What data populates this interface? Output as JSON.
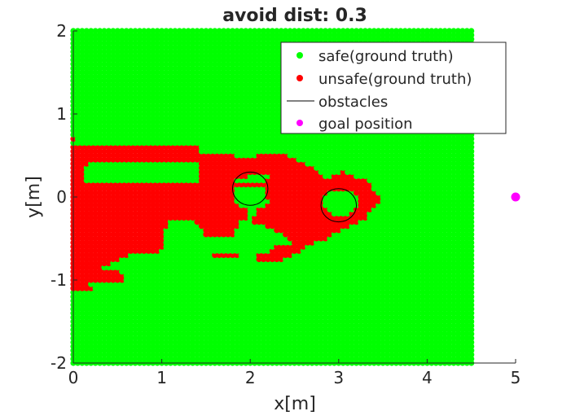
{
  "chart_data": {
    "type": "scatter",
    "title": "avoid dist: 0.3",
    "xlabel": "x[m]",
    "ylabel": "y[m]",
    "xlim": [
      0,
      5
    ],
    "ylim": [
      -2,
      2
    ],
    "xticks": [
      "0",
      "1",
      "2",
      "3",
      "4",
      "5"
    ],
    "yticks": [
      "-2",
      "-1",
      "0",
      "1",
      "2"
    ],
    "grid": false,
    "legend_position": "top-right",
    "grid_points": {
      "x_min": 0,
      "x_max": 4.5,
      "y_min": -2,
      "y_max": 2,
      "step": 0.05
    },
    "series": [
      {
        "name": "safe(ground truth)",
        "color": "#00ff00",
        "marker": "dot",
        "description_rule": "all grid points not listed as unsafe"
      },
      {
        "name": "unsafe(ground truth)",
        "color": "#ff0000",
        "marker": "dot",
        "rows": [
          {
            "y": 0.7,
            "x": [
              [
                0,
                0
              ]
            ]
          },
          {
            "y": 0.6,
            "x": [
              [
                0,
                1.4
              ]
            ]
          },
          {
            "y": 0.55,
            "x": [
              [
                0,
                1.4
              ]
            ]
          },
          {
            "y": 0.5,
            "x": [
              [
                0,
                1.8
              ],
              [
                2.1,
                2.4
              ]
            ]
          },
          {
            "y": 0.45,
            "x": [
              [
                0,
                2.5
              ]
            ]
          },
          {
            "y": 0.4,
            "x": [
              [
                0,
                0.15
              ],
              [
                1.45,
                2.6
              ]
            ]
          },
          {
            "y": 0.35,
            "x": [
              [
                0,
                0.1
              ],
              [
                1.45,
                2.7
              ]
            ]
          },
          {
            "y": 0.3,
            "x": [
              [
                0,
                0.1
              ],
              [
                1.45,
                2.75
              ],
              [
                3.05,
                3.05
              ]
            ]
          },
          {
            "y": 0.25,
            "x": [
              [
                0,
                0.1
              ],
              [
                1.45,
                1.95
              ],
              [
                2.25,
                2.8
              ],
              [
                2.95,
                3.15
              ]
            ]
          },
          {
            "y": 0.2,
            "x": [
              [
                0,
                0.1
              ],
              [
                1.45,
                1.8
              ],
              [
                2.2,
                3.3
              ]
            ]
          },
          {
            "y": 0.15,
            "x": [
              [
                0,
                3.35
              ]
            ]
          },
          {
            "y": 0.1,
            "x": [
              [
                0,
                1.8
              ],
              [
                2.2,
                3.35
              ]
            ]
          },
          {
            "y": 0.05,
            "x": [
              [
                0,
                1.8
              ],
              [
                2.2,
                2.85
              ],
              [
                3.2,
                3.4
              ]
            ]
          },
          {
            "y": 0.0,
            "x": [
              [
                0,
                1.8
              ],
              [
                2.2,
                2.8
              ],
              [
                3.25,
                3.45
              ]
            ]
          },
          {
            "y": -0.05,
            "x": [
              [
                0,
                1.8
              ],
              [
                2.25,
                2.8
              ],
              [
                3.25,
                3.45
              ]
            ]
          },
          {
            "y": -0.1,
            "x": [
              [
                0,
                1.85
              ],
              [
                2.2,
                2.8
              ],
              [
                3.25,
                3.4
              ]
            ]
          },
          {
            "y": -0.15,
            "x": [
              [
                0,
                1.95
              ],
              [
                2.1,
                2.85
              ],
              [
                3.2,
                3.35
              ]
            ]
          },
          {
            "y": -0.2,
            "x": [
              [
                0,
                1.95
              ],
              [
                2.1,
                2.9
              ],
              [
                3.15,
                3.3
              ]
            ]
          },
          {
            "y": -0.25,
            "x": [
              [
                0,
                1.95
              ],
              [
                2.05,
                3.3
              ]
            ]
          },
          {
            "y": -0.3,
            "x": [
              [
                0,
                1.05
              ],
              [
                1.4,
                1.85
              ],
              [
                2.05,
                3.2
              ]
            ]
          },
          {
            "y": -0.35,
            "x": [
              [
                0,
                1.05
              ],
              [
                1.45,
                1.85
              ],
              [
                2.2,
                3.1
              ]
            ]
          },
          {
            "y": -0.4,
            "x": [
              [
                0,
                1.0
              ],
              [
                1.5,
                1.8
              ],
              [
                2.3,
                3.0
              ]
            ]
          },
          {
            "y": -0.45,
            "x": [
              [
                0,
                1.0
              ],
              [
                1.5,
                1.8
              ],
              [
                2.4,
                2.9
              ]
            ]
          },
          {
            "y": -0.5,
            "x": [
              [
                0,
                1.0
              ],
              [
                2.45,
                2.85
              ]
            ]
          },
          {
            "y": -0.55,
            "x": [
              [
                0,
                1.0
              ],
              [
                2.5,
                2.7
              ]
            ]
          },
          {
            "y": -0.6,
            "x": [
              [
                0,
                1.0
              ],
              [
                2.3,
                2.6
              ]
            ]
          },
          {
            "y": -0.65,
            "x": [
              [
                0,
                0.95
              ],
              [
                2.25,
                2.55
              ]
            ]
          },
          {
            "y": -0.7,
            "x": [
              [
                0,
                0.6
              ],
              [
                1.6,
                1.85
              ],
              [
                2.1,
                2.45
              ]
            ]
          },
          {
            "y": -0.75,
            "x": [
              [
                0,
                0.5
              ],
              [
                2.1,
                2.35
              ]
            ]
          },
          {
            "y": -0.8,
            "x": [
              [
                0,
                0.4
              ]
            ]
          },
          {
            "y": -0.85,
            "x": [
              [
                0,
                0.3
              ]
            ]
          },
          {
            "y": -0.9,
            "x": [
              [
                0,
                0.5
              ]
            ]
          },
          {
            "y": -0.95,
            "x": [
              [
                0,
                0.55
              ]
            ]
          },
          {
            "y": -1.0,
            "x": [
              [
                0,
                0.55
              ]
            ]
          },
          {
            "y": -1.05,
            "x": [
              [
                0,
                0.15
              ]
            ]
          },
          {
            "y": -1.1,
            "x": [
              [
                0,
                0.2
              ]
            ]
          }
        ]
      },
      {
        "name": "obstacles",
        "color": "#000000",
        "type": "circles",
        "circles": [
          {
            "cx": 2.0,
            "cy": 0.1,
            "r": 0.2
          },
          {
            "cx": 3.0,
            "cy": -0.1,
            "r": 0.2
          }
        ]
      },
      {
        "name": "goal position",
        "color": "#ff00ff",
        "marker": "dot",
        "points": [
          {
            "x": 5.0,
            "y": 0.0
          }
        ]
      }
    ]
  }
}
